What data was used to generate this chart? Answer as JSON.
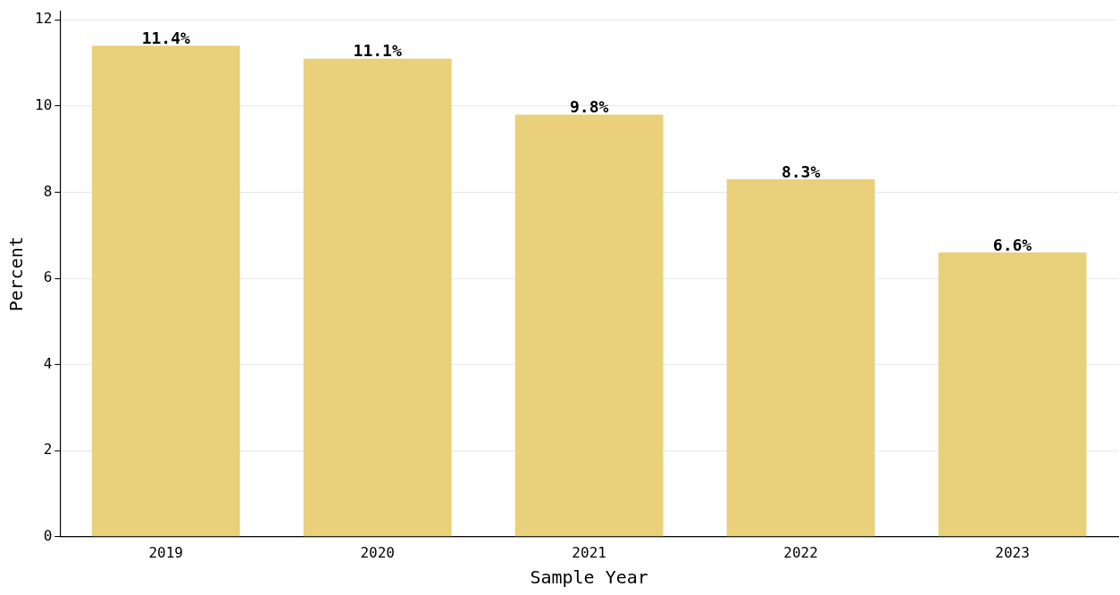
{
  "chart_data": {
    "type": "bar",
    "xlabel": "Sample Year",
    "ylabel": "Percent",
    "categories": [
      "2019",
      "2020",
      "2021",
      "2022",
      "2023"
    ],
    "values": [
      11.4,
      11.1,
      9.8,
      8.3,
      6.6
    ],
    "value_labels": [
      "11.4%",
      "11.1%",
      "9.8%",
      "8.3%",
      "6.6%"
    ],
    "color": "#e9d07a",
    "ylim": [
      0,
      12.2
    ],
    "yticks": [
      0,
      2,
      4,
      6,
      8,
      10,
      12
    ],
    "grid": "y",
    "legend": false
  }
}
